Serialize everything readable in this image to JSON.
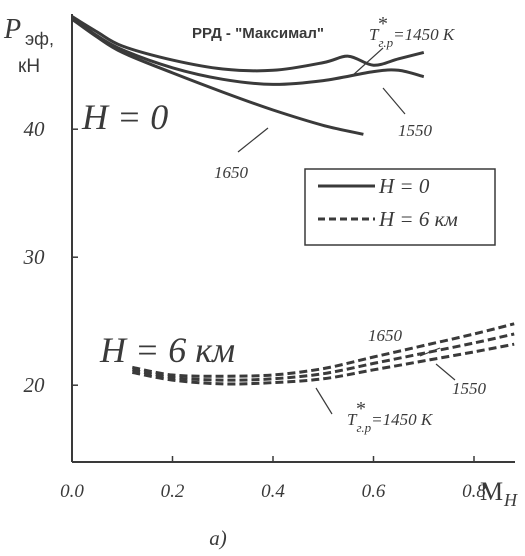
{
  "chart_data": {
    "type": "line",
    "title": "РРД - \"Максимал\"",
    "ylabel": "Рэф, кН",
    "ylabel_main": "P",
    "ylabel_sub": "эф,",
    "ylabel_unit": "кН",
    "xlabel": "M",
    "xlabel_sub": "H",
    "xlim": [
      0.0,
      0.9
    ],
    "ylim": [
      14.0,
      49.0
    ],
    "x_ticks": [
      "0.0",
      "0.2",
      "0.4",
      "0.6",
      "0.8"
    ],
    "x_tick_values": [
      0.0,
      0.2,
      0.4,
      0.6,
      0.8
    ],
    "y_ticks": [
      "20",
      "30",
      "40"
    ],
    "y_tick_values": [
      20,
      30,
      40
    ],
    "grid": false,
    "caption": "а)",
    "region_labels": {
      "h0": "H = 0",
      "h6": "H = 6 км"
    },
    "legend": {
      "position": "right",
      "entries": [
        {
          "label": "H = 0",
          "style": "solid"
        },
        {
          "label": "H = 6 км",
          "style": "dashed"
        }
      ]
    },
    "annotations": {
      "t1450_top": {
        "main": "T",
        "sup": "*",
        "sub": "г.р",
        "rest": "=1450 K"
      },
      "t1550_top": "1550",
      "t1650_top": "1650",
      "t1650_bottom": "1650",
      "t1550_bottom": "1550",
      "t1450_bottom": {
        "main": "T",
        "sup": "*",
        "sub": "г.р",
        "rest": "=1450 K"
      }
    },
    "series": [
      {
        "group": "H = 0",
        "T": 1450,
        "style": "solid",
        "x": [
          0.0,
          0.05,
          0.1,
          0.2,
          0.3,
          0.4,
          0.5,
          0.55,
          0.6,
          0.65,
          0.7
        ],
        "y": [
          48.8,
          47.6,
          46.5,
          45.4,
          44.7,
          44.6,
          45.2,
          45.7,
          45.0,
          45.5,
          46.0
        ]
      },
      {
        "group": "H = 0",
        "T": 1550,
        "style": "solid",
        "x": [
          0.0,
          0.05,
          0.1,
          0.2,
          0.3,
          0.4,
          0.5,
          0.6,
          0.65,
          0.7
        ],
        "y": [
          48.7,
          47.3,
          46.2,
          44.8,
          43.9,
          43.5,
          43.8,
          44.5,
          44.6,
          44.1
        ]
      },
      {
        "group": "H = 0",
        "T": 1650,
        "style": "solid",
        "x": [
          0.0,
          0.05,
          0.1,
          0.2,
          0.3,
          0.4,
          0.5,
          0.58
        ],
        "y": [
          48.6,
          47.2,
          46.0,
          44.4,
          42.9,
          41.5,
          40.3,
          39.6
        ]
      },
      {
        "group": "H = 6 км",
        "T": 1450,
        "style": "dashed",
        "x": [
          0.12,
          0.2,
          0.3,
          0.4,
          0.5,
          0.6,
          0.7,
          0.8,
          0.88
        ],
        "y": [
          21.0,
          20.4,
          20.1,
          20.2,
          20.5,
          21.2,
          21.9,
          22.6,
          23.2
        ]
      },
      {
        "group": "H = 6 км",
        "T": 1550,
        "style": "dashed",
        "x": [
          0.12,
          0.2,
          0.3,
          0.4,
          0.5,
          0.6,
          0.7,
          0.8,
          0.88
        ],
        "y": [
          21.2,
          20.6,
          20.4,
          20.5,
          20.9,
          21.7,
          22.5,
          23.3,
          24.0
        ]
      },
      {
        "group": "H = 6 км",
        "T": 1650,
        "style": "dashed",
        "x": [
          0.12,
          0.2,
          0.3,
          0.4,
          0.5,
          0.6,
          0.7,
          0.8,
          0.88
        ],
        "y": [
          21.4,
          20.8,
          20.7,
          20.8,
          21.3,
          22.2,
          23.1,
          24.0,
          24.8
        ]
      }
    ]
  }
}
